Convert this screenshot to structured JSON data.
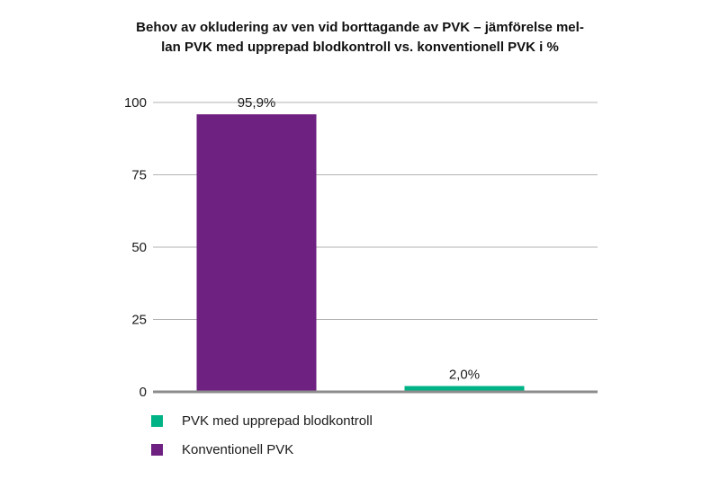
{
  "chart_data": {
    "type": "bar",
    "title_lines": [
      "Behov av okludering av ven vid borttagande av PVK – jämförelse mel-",
      "lan PVK med upprepad blodkontroll vs. konventionell PVK i %"
    ],
    "categories": [
      "Konventionell PVK",
      "PVK med upprepad blodkontroll"
    ],
    "values": [
      95.9,
      2.0
    ],
    "data_labels": [
      "95,9%",
      "2,0%"
    ],
    "colors": [
      "#6e2181",
      "#00b386"
    ],
    "ylim": [
      0,
      100
    ],
    "yticks": [
      0,
      25,
      50,
      75,
      100
    ],
    "ytick_labels": [
      "0",
      "25",
      "50",
      "75",
      "100"
    ],
    "grid": true,
    "legend": {
      "placement": "bottom-left",
      "items": [
        {
          "label": "PVK med upprepad blodkontroll",
          "color": "#00b386"
        },
        {
          "label": "Konventionell PVK",
          "color": "#6e2181"
        }
      ]
    }
  }
}
